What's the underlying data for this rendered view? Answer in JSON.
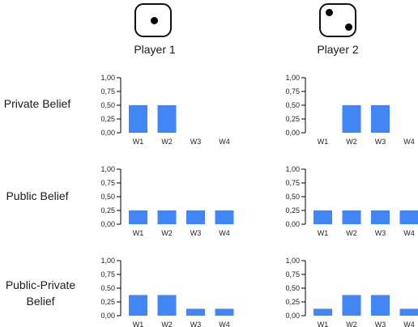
{
  "players": [
    {
      "label": "Player 1",
      "die_face": 1
    },
    {
      "label": "Player 2",
      "die_face": 2
    }
  ],
  "rows": [
    {
      "label": "Private Belief"
    },
    {
      "label": "Public Belief"
    },
    {
      "label": "Public-Private Belief"
    }
  ],
  "chart_data": [
    {
      "type": "bar",
      "row": "Private Belief",
      "player": "Player 1",
      "categories": [
        "W1",
        "W2",
        "W3",
        "W4"
      ],
      "values": [
        0.5,
        0.5,
        0,
        0
      ],
      "ylim": [
        0,
        1
      ],
      "yticks": [
        "0,00",
        "0,25",
        "0,50",
        "0,75",
        "1,00"
      ],
      "color": "#4285f4"
    },
    {
      "type": "bar",
      "row": "Private Belief",
      "player": "Player 2",
      "categories": [
        "W1",
        "W2",
        "W3",
        "W4"
      ],
      "values": [
        0,
        0.5,
        0.5,
        0
      ],
      "ylim": [
        0,
        1
      ],
      "yticks": [
        "0,00",
        "0,25",
        "0,50",
        "0,75",
        "1,00"
      ],
      "color": "#4285f4"
    },
    {
      "type": "bar",
      "row": "Public Belief",
      "player": "Player 1",
      "categories": [
        "W1",
        "W2",
        "W3",
        "W4"
      ],
      "values": [
        0.25,
        0.25,
        0.25,
        0.25
      ],
      "ylim": [
        0,
        1
      ],
      "yticks": [
        "0,00",
        "0,25",
        "0,50",
        "0,75",
        "1,00"
      ],
      "color": "#4285f4"
    },
    {
      "type": "bar",
      "row": "Public Belief",
      "player": "Player 2",
      "categories": [
        "W1",
        "W2",
        "W3",
        "W4"
      ],
      "values": [
        0.25,
        0.25,
        0.25,
        0.25
      ],
      "ylim": [
        0,
        1
      ],
      "yticks": [
        "0,00",
        "0,25",
        "0,50",
        "0,75",
        "1,00"
      ],
      "color": "#4285f4"
    },
    {
      "type": "bar",
      "row": "Public-Private Belief",
      "player": "Player 1",
      "categories": [
        "W1",
        "W2",
        "W3",
        "W4"
      ],
      "values": [
        0.375,
        0.375,
        0.125,
        0.125
      ],
      "ylim": [
        0,
        1
      ],
      "yticks": [
        "0,00",
        "0,25",
        "0,50",
        "0,75",
        "1,00"
      ],
      "color": "#4285f4"
    },
    {
      "type": "bar",
      "row": "Public-Private Belief",
      "player": "Player 2",
      "categories": [
        "W1",
        "W2",
        "W3",
        "W4"
      ],
      "values": [
        0.125,
        0.375,
        0.375,
        0.125
      ],
      "ylim": [
        0,
        1
      ],
      "yticks": [
        "0,00",
        "0,25",
        "0,50",
        "0,75",
        "1,00"
      ],
      "color": "#4285f4"
    }
  ]
}
